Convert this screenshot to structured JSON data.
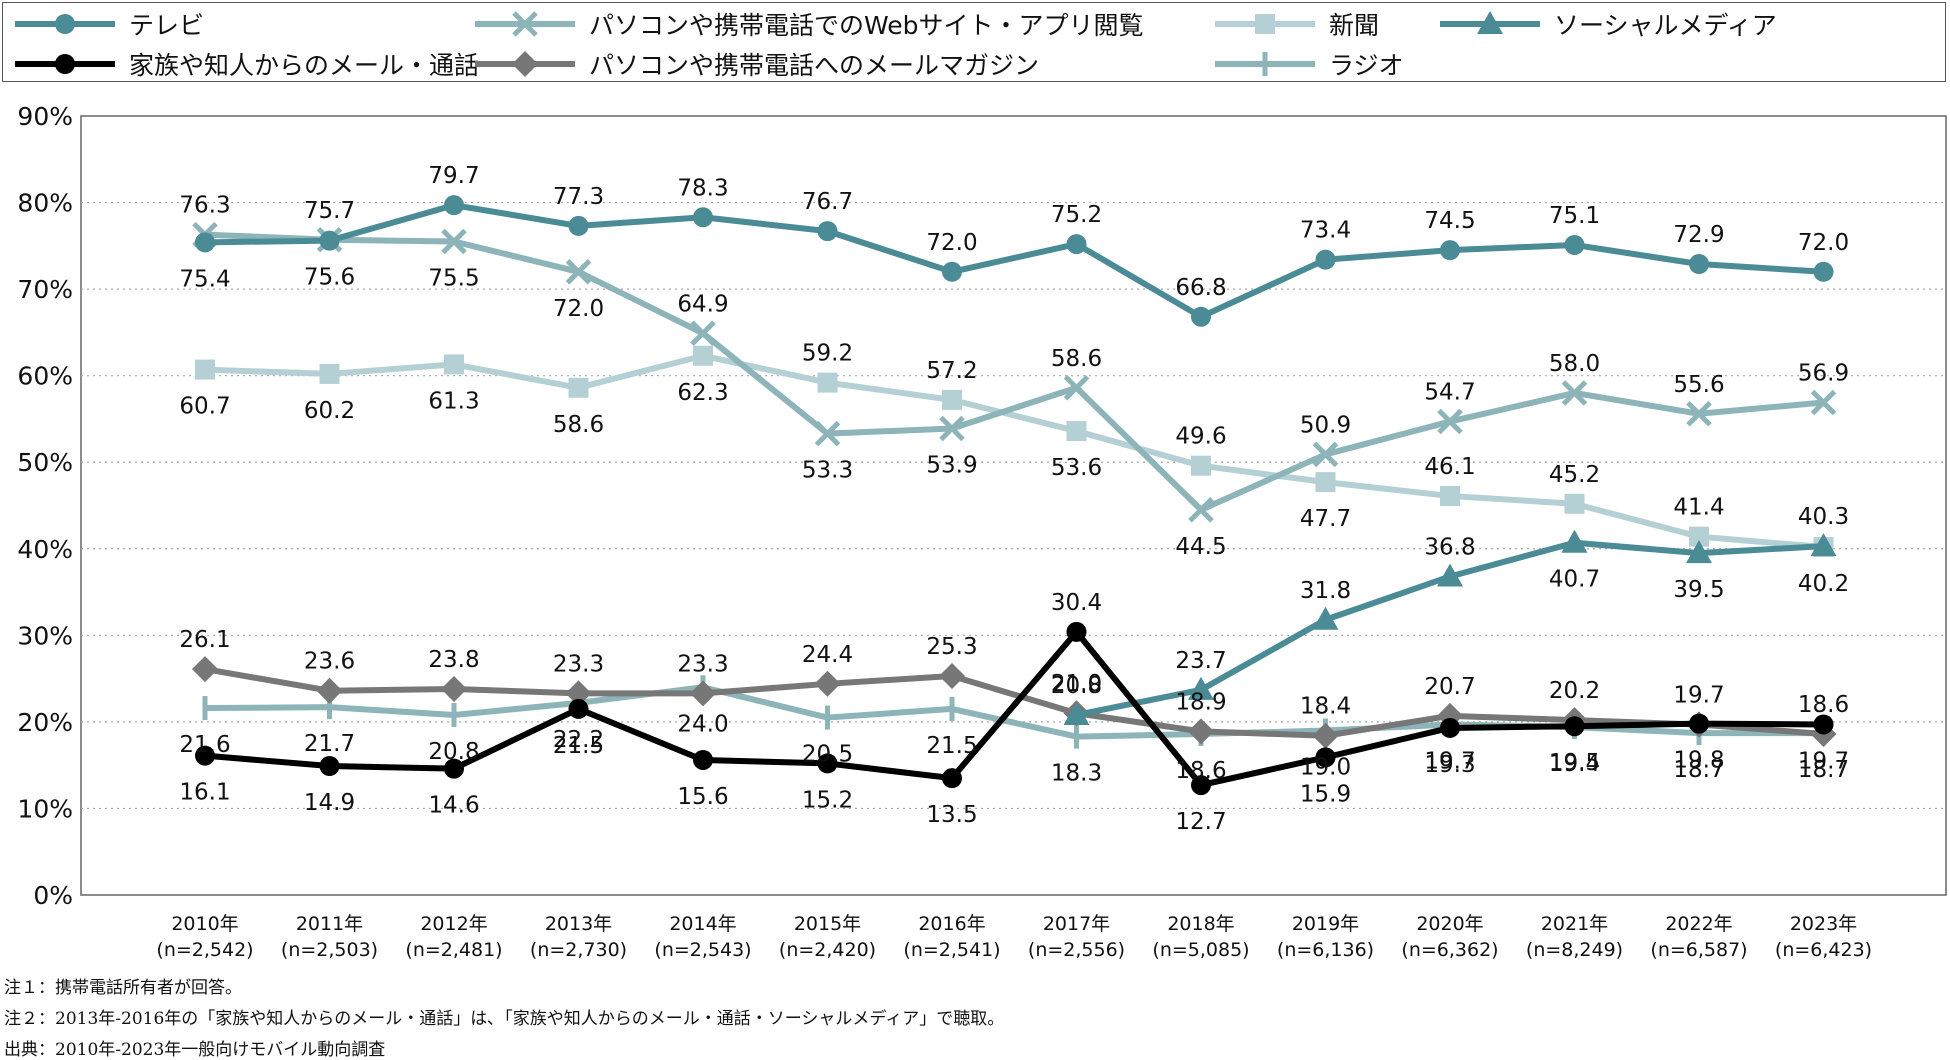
{
  "chart_data": {
    "type": "line",
    "title": "",
    "xlabel": "",
    "ylabel": "",
    "ylim": [
      0,
      90
    ],
    "yticks": [
      "0%",
      "10%",
      "20%",
      "30%",
      "40%",
      "50%",
      "60%",
      "70%",
      "80%",
      "90%"
    ],
    "grid": true,
    "legend_position": "top",
    "categories": [
      "2010年",
      "2011年",
      "2012年",
      "2013年",
      "2014年",
      "2015年",
      "2016年",
      "2017年",
      "2018年",
      "2019年",
      "2020年",
      "2021年",
      "2022年",
      "2023年"
    ],
    "category_sublabels": [
      "(n=2,542)",
      "(n=2,503)",
      "(n=2,481)",
      "(n=2,730)",
      "(n=2,543)",
      "(n=2,420)",
      "(n=2,541)",
      "(n=2,556)",
      "(n=5,085)",
      "(n=6,136)",
      "(n=6,362)",
      "(n=8,249)",
      "(n=6,587)",
      "(n=6,423)"
    ],
    "series": [
      {
        "name": "テレビ",
        "color": "#4a8b95",
        "marker": "circle",
        "values": [
          75.4,
          75.6,
          79.7,
          77.3,
          78.3,
          76.7,
          72.0,
          75.2,
          66.8,
          73.4,
          74.5,
          75.1,
          72.9,
          72.0
        ]
      },
      {
        "name": "パソコンや携帯電話でのWebサイト・アプリ閲覧",
        "color": "#8cb4b9",
        "marker": "x",
        "values": [
          76.3,
          75.7,
          75.5,
          72.0,
          64.9,
          53.3,
          53.9,
          58.6,
          44.5,
          50.9,
          54.7,
          58.0,
          55.6,
          56.9
        ]
      },
      {
        "name": "新聞",
        "color": "#b5d0d4",
        "marker": "square",
        "values": [
          60.7,
          60.2,
          61.3,
          58.6,
          62.3,
          59.2,
          57.2,
          53.6,
          49.6,
          47.7,
          46.1,
          45.2,
          41.4,
          40.2
        ]
      },
      {
        "name": "ソーシャルメディア",
        "color": "#4a8b95",
        "marker": "triangle",
        "values": [
          null,
          null,
          null,
          null,
          null,
          null,
          null,
          20.8,
          23.7,
          31.8,
          36.8,
          40.7,
          39.5,
          40.3
        ]
      },
      {
        "name": "家族や知人からのメール・通話",
        "color": "#000000",
        "marker": "circle",
        "values": [
          16.1,
          14.9,
          14.6,
          21.5,
          15.6,
          15.2,
          13.5,
          30.4,
          12.7,
          15.9,
          19.3,
          19.5,
          19.8,
          19.7
        ]
      },
      {
        "name": "パソコンや携帯電話へのメールマガジン",
        "color": "#777777",
        "marker": "diamond",
        "values": [
          26.1,
          23.6,
          23.8,
          23.3,
          23.3,
          24.4,
          25.3,
          21.0,
          18.9,
          18.4,
          20.7,
          20.2,
          19.7,
          18.6
        ]
      },
      {
        "name": "ラジオ",
        "color": "#8cb4b9",
        "marker": "plus",
        "values": [
          21.6,
          21.7,
          20.8,
          22.2,
          24.0,
          20.5,
          21.5,
          18.3,
          18.6,
          19.0,
          19.7,
          19.4,
          18.7,
          18.7
        ]
      }
    ]
  },
  "notes": [
    "注１：携帯電話所有者が回答。",
    "注２：2013年-2016年の「家族や知人からのメール・通話」は､「家族や知人からのメール・通話・ソーシャルメディア」で聴取。",
    "出典：2010年-2023年一般向けモバイル動向調査"
  ]
}
